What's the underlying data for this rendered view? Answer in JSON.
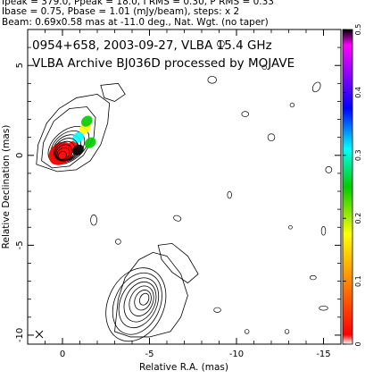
{
  "header": {
    "line1": "Ipeak = 379.0, Ppeak = 18.0, I RMS = 0.30, P RMS = 0.33",
    "line2": "Ibase = 0.75, Pbase = 1.01 (mJy/beam), steps: x 2",
    "line3": "Beam: 0.69x0.58 mas at -11.0 deg., Nat. Wgt. (no taper)"
  },
  "chart_data": {
    "type": "heatmap",
    "title": "0954+658, 2003-09-27, VLBA 15.4 GHz",
    "subtitle": "VLBA Archive BJ036D processed by MOJAVE",
    "xlabel": "Relative R.A. (mas)",
    "ylabel": "Relative Declination (mas)",
    "xlim": [
      2,
      -16
    ],
    "ylim": [
      -10.5,
      7
    ],
    "x_ticks": [
      0,
      -5,
      -10,
      -15
    ],
    "y_ticks": [
      5,
      0,
      -5,
      -10
    ],
    "grid": false,
    "colorbar": {
      "min": 0,
      "max": 0.5,
      "ticks": [
        "0",
        "0.1",
        "0.2",
        "0.3",
        "0.4",
        "0.5"
      ],
      "tick_values": [
        0,
        0.1,
        0.2,
        0.3,
        0.4,
        0.5
      ]
    },
    "core": {
      "x": 0,
      "y": 0
    },
    "jet_knot": {
      "x": -4.7,
      "y": -8.0
    },
    "polarization_patches": [
      {
        "x": 0.1,
        "y": 0.1,
        "value": 0.005
      },
      {
        "x": -0.6,
        "y": 0.5,
        "value": 0.02
      },
      {
        "x": -0.9,
        "y": 1.0,
        "value": 0.35
      },
      {
        "x": -1.3,
        "y": 1.5,
        "value": 0.2
      },
      {
        "x": -1.4,
        "y": 1.9,
        "value": 0.28
      },
      {
        "x": -1.6,
        "y": 0.7,
        "value": 0.25
      },
      {
        "x": -0.9,
        "y": 0.3,
        "value": 0.5
      }
    ],
    "beam": {
      "major_mas": 0.69,
      "minor_mas": 0.58,
      "pa_deg": -11.0
    },
    "colors": {
      "contour": "#000000",
      "cmap_stops": [
        "#ffffff",
        "#ff0000",
        "#ffaa00",
        "#ffff00",
        "#00cc00",
        "#00ffff",
        "#0000ff",
        "#8800ff",
        "#ff00ff",
        "#000000"
      ]
    }
  }
}
